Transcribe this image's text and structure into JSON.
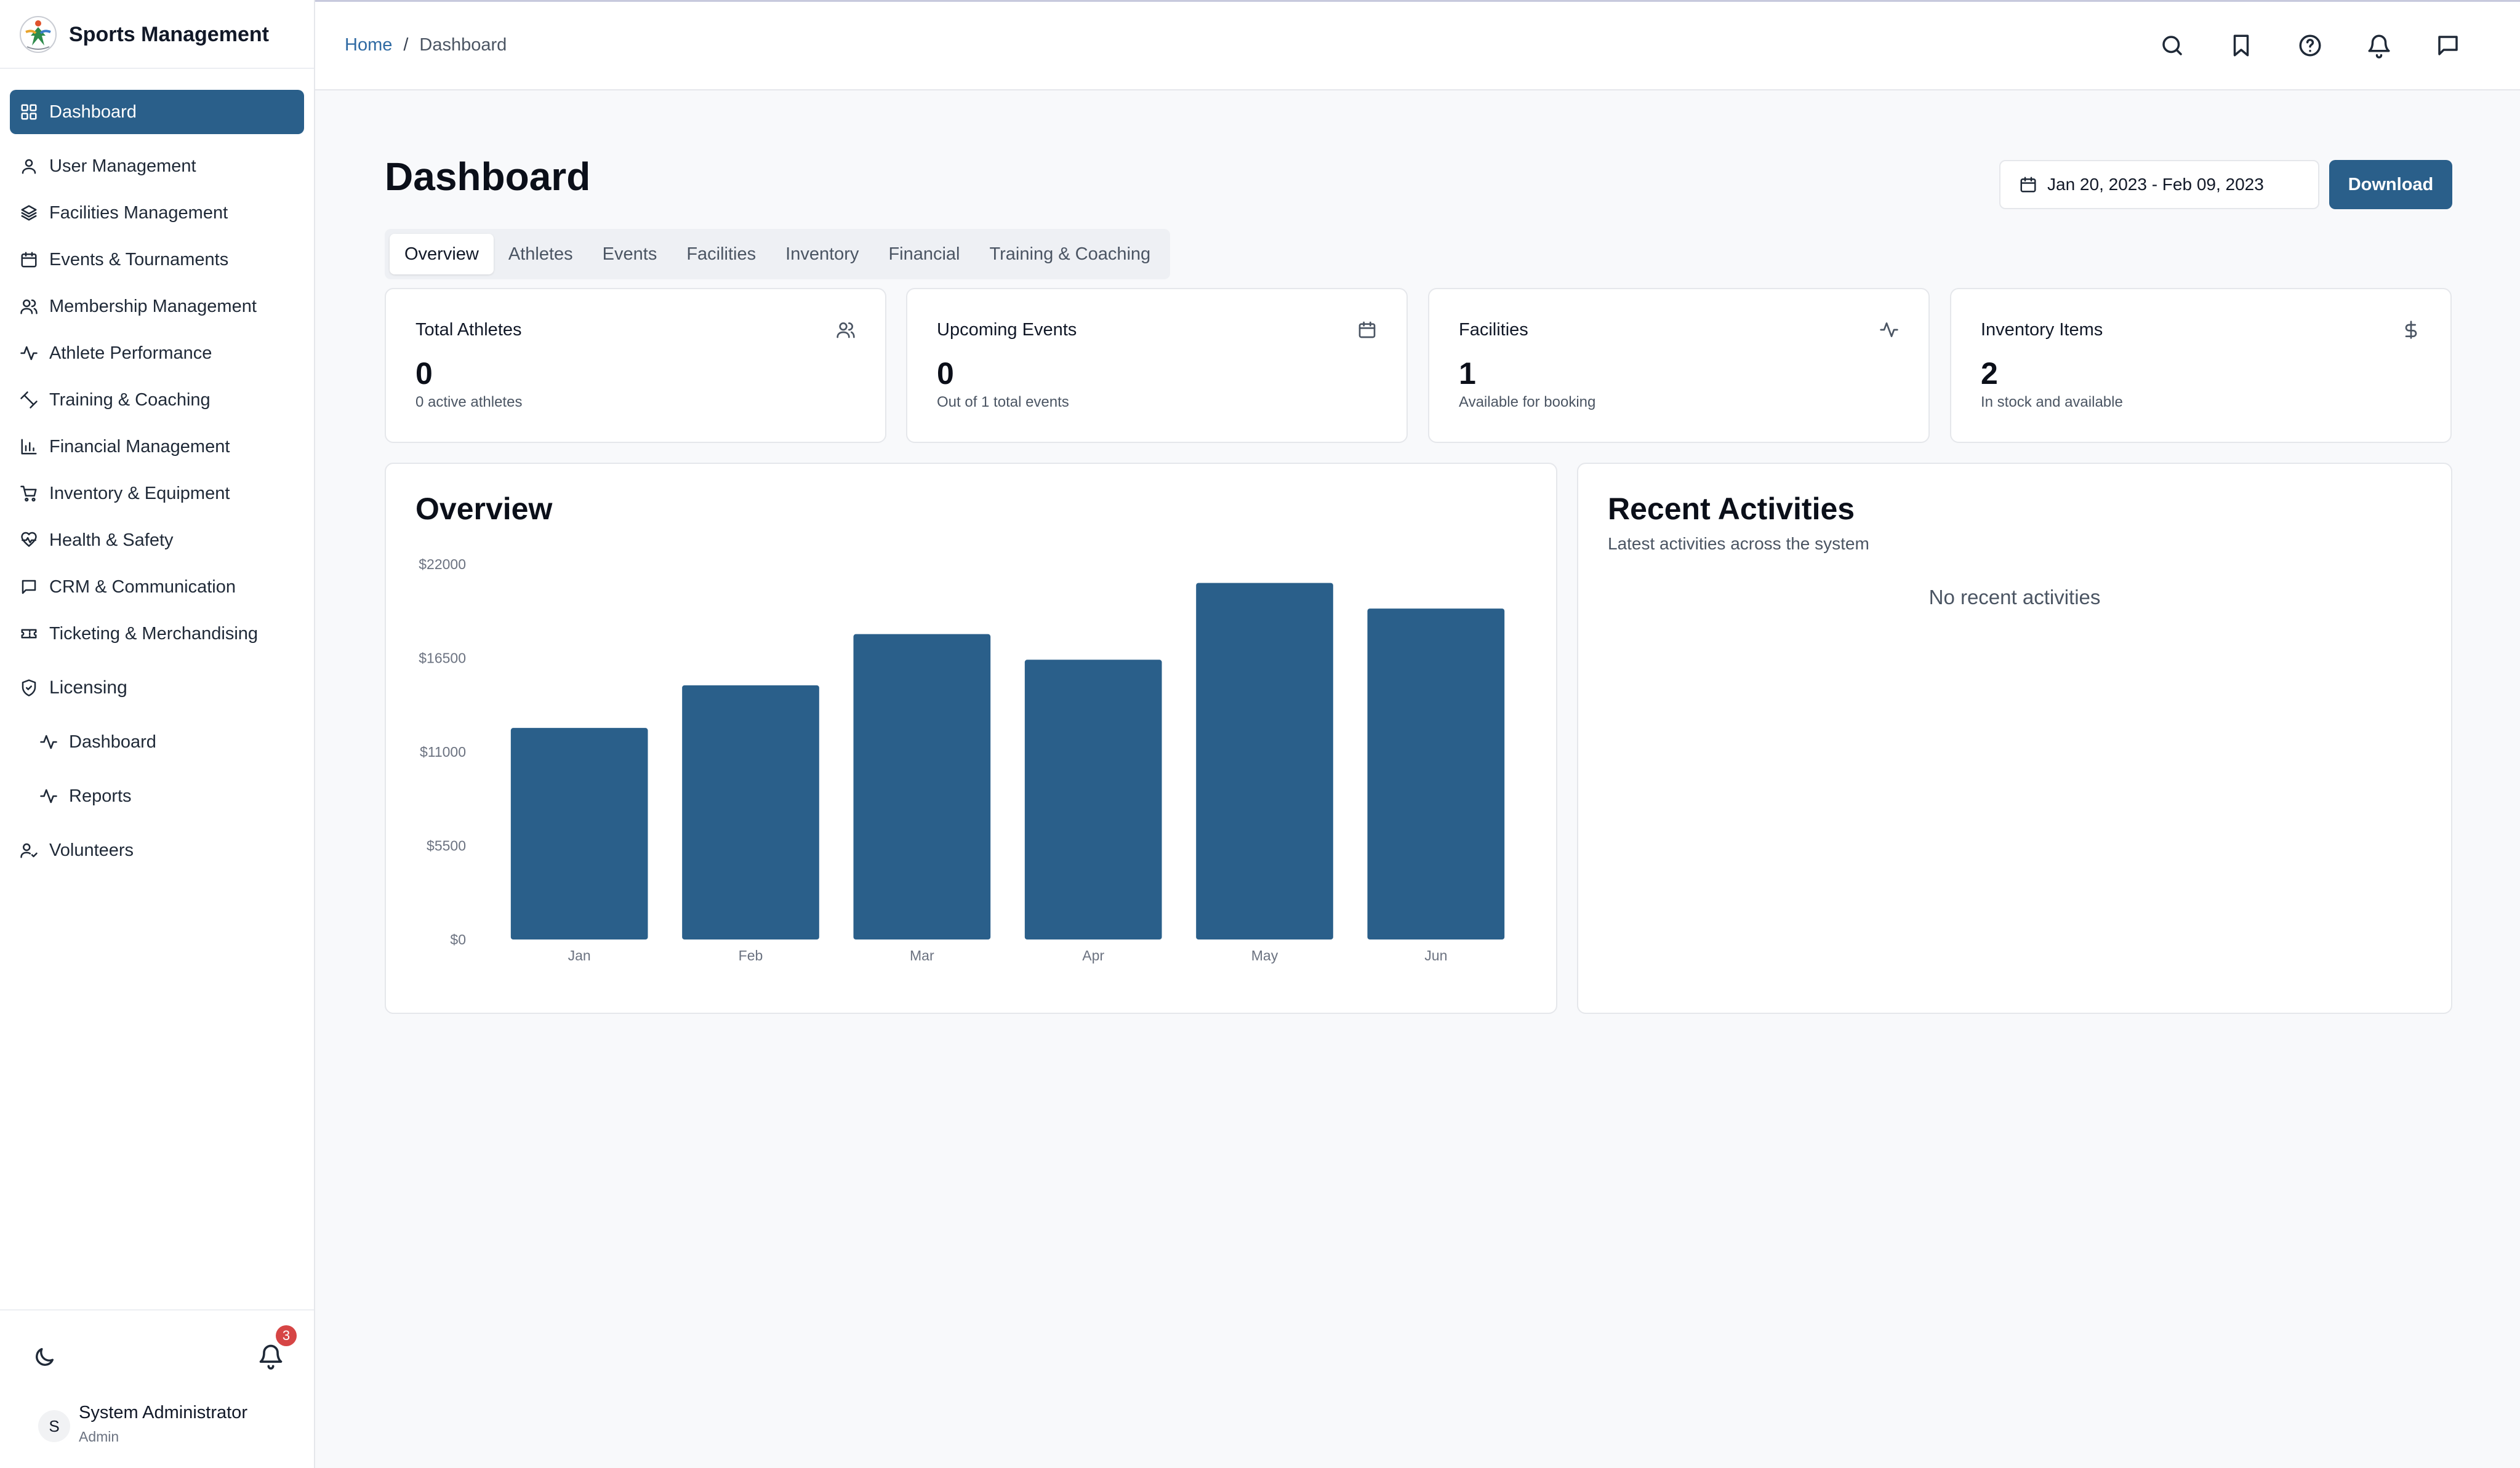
{
  "app": {
    "title": "Sports Management"
  },
  "sidebar": {
    "items": [
      {
        "label": "Dashboard",
        "icon": "grid-icon",
        "active": true
      },
      {
        "label": "User Management",
        "icon": "user-icon"
      },
      {
        "label": "Facilities Management",
        "icon": "layers-icon"
      },
      {
        "label": "Events & Tournaments",
        "icon": "calendar-icon"
      },
      {
        "label": "Membership Management",
        "icon": "users-icon"
      },
      {
        "label": "Athlete Performance",
        "icon": "activity-icon"
      },
      {
        "label": "Training & Coaching",
        "icon": "dumbbell-icon"
      },
      {
        "label": "Financial Management",
        "icon": "bar-chart-icon"
      },
      {
        "label": "Inventory & Equipment",
        "icon": "cart-icon"
      },
      {
        "label": "Health & Safety",
        "icon": "heart-pulse-icon"
      },
      {
        "label": "CRM & Communication",
        "icon": "message-icon"
      },
      {
        "label": "Ticketing & Merchandising",
        "icon": "ticket-icon"
      }
    ],
    "licensing": {
      "label": "Licensing",
      "icon": "shield-icon",
      "children": [
        {
          "label": "Dashboard",
          "icon": "activity-icon"
        },
        {
          "label": "Reports",
          "icon": "activity-icon"
        }
      ]
    },
    "volunteers": {
      "label": "Volunteers",
      "icon": "user-check-icon"
    },
    "notifications_count": "3",
    "user": {
      "initial": "S",
      "name": "System Administrator",
      "role": "Admin"
    }
  },
  "header": {
    "breadcrumb": {
      "home": "Home",
      "separator": "/",
      "current": "Dashboard"
    },
    "icons": [
      "search-icon",
      "bookmark-icon",
      "help-icon",
      "bell-icon",
      "message-icon"
    ]
  },
  "main": {
    "title": "Dashboard",
    "date_range": "Jan 20, 2023 - Feb 09, 2023",
    "download_label": "Download",
    "tabs": [
      "Overview",
      "Athletes",
      "Events",
      "Facilities",
      "Inventory",
      "Financial",
      "Training & Coaching"
    ],
    "active_tab": "Overview",
    "stats": [
      {
        "label": "Total Athletes",
        "value": "0",
        "sub": "0 active athletes",
        "icon": "users-icon"
      },
      {
        "label": "Upcoming Events",
        "value": "0",
        "sub": "Out of 1 total events",
        "icon": "calendar-icon"
      },
      {
        "label": "Facilities",
        "value": "1",
        "sub": "Available for booking",
        "icon": "activity-icon"
      },
      {
        "label": "Inventory Items",
        "value": "2",
        "sub": "In stock and available",
        "icon": "dollar-icon"
      }
    ],
    "overview": {
      "title": "Overview"
    },
    "recent": {
      "title": "Recent Activities",
      "subtitle": "Latest activities across the system",
      "empty": "No recent activities"
    }
  },
  "colors": {
    "accent": "#2a5f8a",
    "badge": "#d64545",
    "link": "#2f6aa3"
  },
  "chart_data": {
    "type": "bar",
    "title": "",
    "xlabel": "",
    "ylabel": "",
    "categories": [
      "Jan",
      "Feb",
      "Mar",
      "Apr",
      "May",
      "Jun"
    ],
    "values": [
      12400,
      14900,
      17900,
      16400,
      20900,
      19400
    ],
    "yticks": [
      0,
      5500,
      11000,
      16500,
      22000
    ],
    "ytick_labels": [
      "$0",
      "$5500",
      "$11000",
      "$16500",
      "$22000"
    ],
    "ylim": [
      0,
      22000
    ],
    "grid": false,
    "color": "#2a5f8a"
  }
}
